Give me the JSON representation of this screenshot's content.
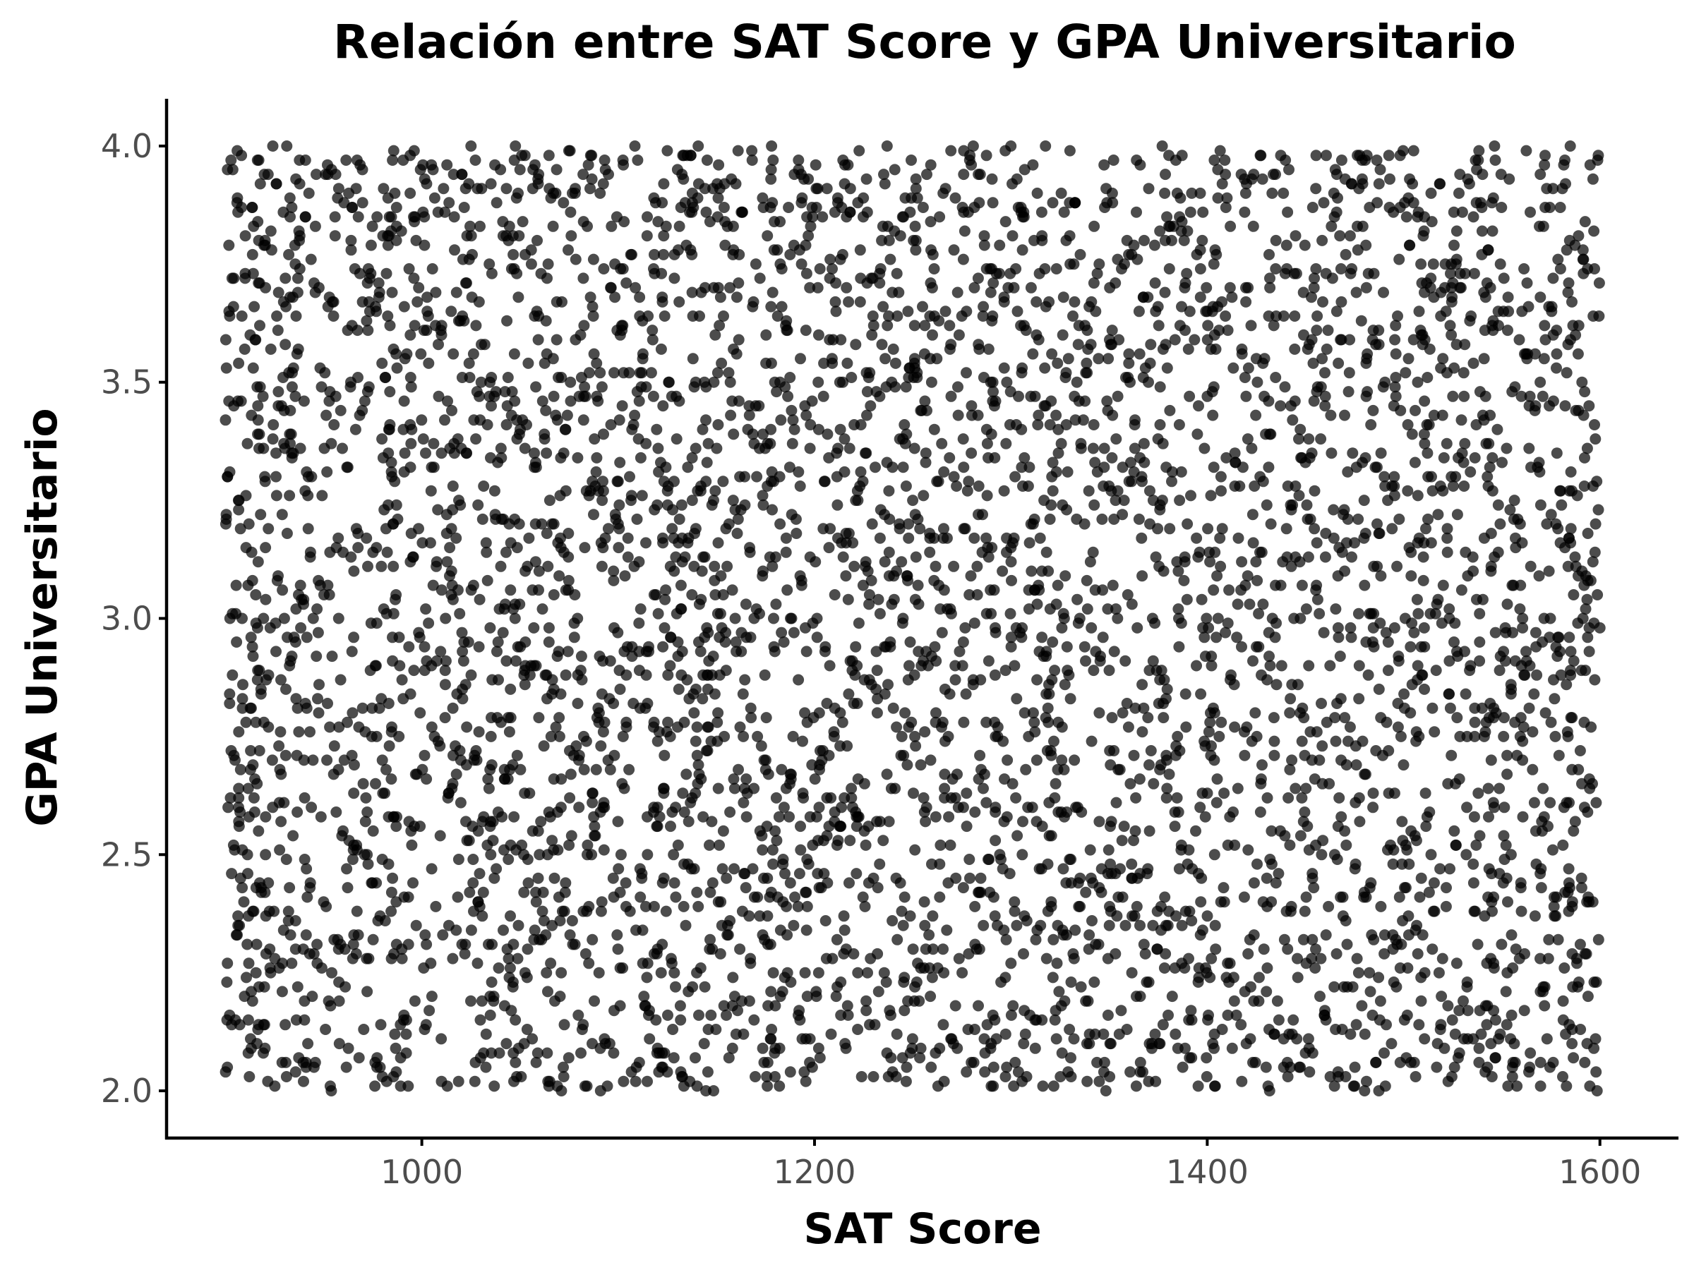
{
  "chart_data": {
    "type": "scatter",
    "title": "Relación entre SAT Score y GPA Universitario",
    "xlabel": "SAT Score",
    "ylabel": "GPA Universitario",
    "xlim": [
      870,
      1640
    ],
    "ylim": [
      1.9,
      4.1
    ],
    "xticks": [
      1000,
      1200,
      1400,
      1600
    ],
    "xtick_labels": [
      "1000",
      "1200",
      "1400",
      "1600"
    ],
    "yticks": [
      2.0,
      2.5,
      3.0,
      3.5,
      4.0
    ],
    "ytick_labels": [
      "2.0",
      "2.5",
      "3.0",
      "3.5",
      "4.0"
    ],
    "grid": false,
    "legend": "none",
    "point_color": "#000000",
    "point_opacity": 0.7,
    "n_points": 5000,
    "x_range": [
      900,
      1600
    ],
    "y_range": [
      2.0,
      4.0
    ],
    "sample_points": [
      [
        906,
        3.99
      ],
      [
        1050,
        3.95
      ],
      [
        1125,
        3.99
      ],
      [
        1300,
        4.0
      ],
      [
        1420,
        3.92
      ],
      [
        1595,
        3.96
      ],
      [
        910,
        3.72
      ],
      [
        1010,
        3.6
      ],
      [
        1170,
        3.45
      ],
      [
        1260,
        3.7
      ],
      [
        1400,
        3.65
      ],
      [
        1520,
        3.55
      ],
      [
        920,
        3.3
      ],
      [
        1100,
        3.2
      ],
      [
        1250,
        3.25
      ],
      [
        1350,
        3.28
      ],
      [
        1450,
        3.33
      ],
      [
        1580,
        3.27
      ],
      [
        930,
        3.0
      ],
      [
        1015,
        3.05
      ],
      [
        1160,
        2.95
      ],
      [
        1320,
        3.02
      ],
      [
        1470,
        3.1
      ],
      [
        1600,
        2.98
      ],
      [
        940,
        2.7
      ],
      [
        1080,
        2.6
      ],
      [
        1210,
        2.75
      ],
      [
        1345,
        2.57
      ],
      [
        1500,
        2.69
      ],
      [
        1590,
        2.72
      ],
      [
        950,
        2.4
      ],
      [
        1120,
        2.3
      ],
      [
        1230,
        2.45
      ],
      [
        1380,
        2.35
      ],
      [
        1480,
        2.42
      ],
      [
        1560,
        2.38
      ],
      [
        905,
        2.15
      ],
      [
        1010,
        2.02
      ],
      [
        1180,
        2.18
      ],
      [
        1290,
        2.01
      ],
      [
        1430,
        2.05
      ],
      [
        1598,
        2.04
      ]
    ]
  }
}
